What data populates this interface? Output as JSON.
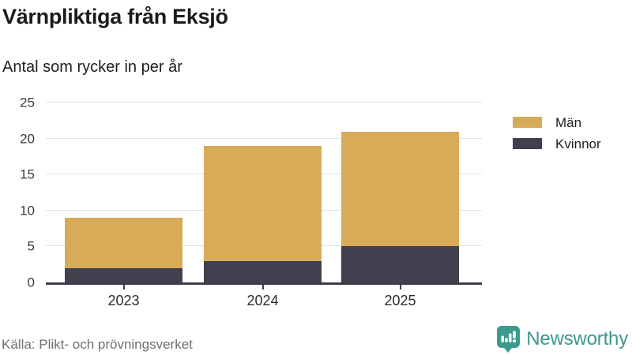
{
  "header": {
    "title": "Värnpliktiga från Eksjö",
    "subtitle": "Antal som rycker in per år"
  },
  "chart_data": {
    "type": "bar",
    "stacked": true,
    "title": "Värnpliktiga från Eksjö",
    "subtitle": "Antal som rycker in per år",
    "categories": [
      "2023",
      "2024",
      "2025"
    ],
    "series": [
      {
        "name": "Män",
        "color": "#d8ab58",
        "values": [
          7,
          16,
          16
        ]
      },
      {
        "name": "Kvinnor",
        "color": "#423f4e",
        "values": [
          2,
          3,
          5
        ]
      }
    ],
    "totals": [
      9,
      19,
      21
    ],
    "yticks": [
      0,
      5,
      10,
      15,
      20,
      25
    ],
    "ylim": [
      0,
      25
    ],
    "xlabel": "",
    "ylabel": "",
    "grid": "horizontal",
    "legend_position": "right",
    "axis_color": "#3e3c4b",
    "gridline_color": "#e2e2e2"
  },
  "legend": {
    "items": [
      {
        "label": "Män",
        "color": "#d8ab58"
      },
      {
        "label": "Kvinnor",
        "color": "#423f4e"
      }
    ]
  },
  "footer": {
    "source": "Källa: Plikt- och prövningsverket",
    "brand": "Newsworthy",
    "brand_color": "#3b9a8e",
    "brand_icon": "speech-bubble-bar-chart-icon"
  }
}
